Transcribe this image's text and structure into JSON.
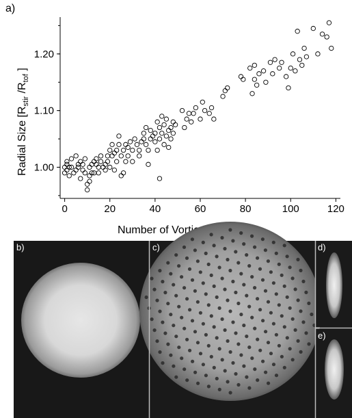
{
  "figure": {
    "panel_labels": {
      "a": "a)",
      "b": "b)",
      "c": "c)",
      "d": "d)",
      "e": "e)"
    },
    "images": {
      "b": "cloud-before-stirring",
      "c": "vortex-lattice",
      "d": "side-view-cloud-d",
      "e": "side-view-cloud-e"
    }
  },
  "chart_data": {
    "type": "scatter",
    "xlabel": "Number of Vortices",
    "ylabel": {
      "text_1": "Radial Size [R",
      "sub_1": "stir",
      "text_2": " /R",
      "sub_2": "tof",
      "text_3": " ]"
    },
    "xlim": [
      -2,
      122
    ],
    "ylim": [
      0.945,
      1.265
    ],
    "x_ticks": [
      0,
      20,
      40,
      60,
      80,
      100,
      120
    ],
    "x_tick_labels": [
      "0",
      "20",
      "40",
      "60",
      "80",
      "100",
      "120"
    ],
    "y_ticks": [
      1.0,
      1.1,
      1.2
    ],
    "y_tick_labels": [
      "1.00",
      "1.10",
      "1.20"
    ],
    "grid": false,
    "marker": "open-circle",
    "points": [
      [
        0,
        0.99
      ],
      [
        0,
        1.0
      ],
      [
        1,
        1.01
      ],
      [
        1,
        0.995
      ],
      [
        1,
        1.005
      ],
      [
        2,
        0.985
      ],
      [
        2,
        1.0
      ],
      [
        3,
        1.015
      ],
      [
        3,
        1.0
      ],
      [
        4,
        0.99
      ],
      [
        5,
        1.02
      ],
      [
        5,
        0.995
      ],
      [
        6,
        1.0
      ],
      [
        6,
        1.005
      ],
      [
        7,
        1.01
      ],
      [
        7,
        0.98
      ],
      [
        8,
        0.995
      ],
      [
        8,
        1.005
      ],
      [
        9,
        0.99
      ],
      [
        9,
        1.015
      ],
      [
        10,
        0.97
      ],
      [
        10,
        0.96
      ],
      [
        11,
        1.0
      ],
      [
        11,
        0.985
      ],
      [
        11,
        0.975
      ],
      [
        12,
        0.99
      ],
      [
        12,
        1.005
      ],
      [
        13,
        1.01
      ],
      [
        13,
        0.99
      ],
      [
        14,
        1.015
      ],
      [
        14,
        1.005
      ],
      [
        15,
        1.0
      ],
      [
        15,
        0.99
      ],
      [
        16,
        1.01
      ],
      [
        16,
        1.02
      ],
      [
        17,
        1.0
      ],
      [
        18,
        1.005
      ],
      [
        18,
        0.995
      ],
      [
        19,
        1.02
      ],
      [
        19,
        1.01
      ],
      [
        20,
        1.03
      ],
      [
        20,
        1.0
      ],
      [
        21,
        1.04
      ],
      [
        21,
        1.02
      ],
      [
        22,
        1.025
      ],
      [
        22,
        0.995
      ],
      [
        23,
        1.03
      ],
      [
        23,
        1.01
      ],
      [
        24,
        1.04
      ],
      [
        24,
        1.055
      ],
      [
        25,
        1.02
      ],
      [
        25,
        0.985
      ],
      [
        26,
        1.03
      ],
      [
        26,
        0.99
      ],
      [
        27,
        1.01
      ],
      [
        27,
        1.04
      ],
      [
        28,
        1.02
      ],
      [
        28,
        1.035
      ],
      [
        29,
        1.045
      ],
      [
        30,
        1.03
      ],
      [
        30,
        1.01
      ],
      [
        31,
        1.05
      ],
      [
        32,
        1.04
      ],
      [
        33,
        1.03
      ],
      [
        33,
        1.02
      ],
      [
        34,
        1.045
      ],
      [
        35,
        1.05
      ],
      [
        35,
        1.06
      ],
      [
        36,
        1.04
      ],
      [
        36,
        1.07
      ],
      [
        37,
        1.03
      ],
      [
        37,
        1.005
      ],
      [
        38,
        1.05
      ],
      [
        38,
        1.065
      ],
      [
        39,
        1.055
      ],
      [
        40,
        1.045
      ],
      [
        40,
        1.06
      ],
      [
        41,
        1.08
      ],
      [
        41,
        1.03
      ],
      [
        42,
        1.05
      ],
      [
        42,
        1.07
      ],
      [
        43,
        1.06
      ],
      [
        43,
        1.09
      ],
      [
        44,
        1.04
      ],
      [
        44,
        1.075
      ],
      [
        45,
        1.055
      ],
      [
        45,
        1.085
      ],
      [
        46,
        1.065
      ],
      [
        46,
        1.035
      ],
      [
        47,
        1.07
      ],
      [
        47,
        1.05
      ],
      [
        48,
        1.08
      ],
      [
        48,
        1.06
      ],
      [
        49,
        1.075
      ],
      [
        42,
        0.98
      ],
      [
        52,
        1.1
      ],
      [
        53,
        1.07
      ],
      [
        54,
        1.085
      ],
      [
        55,
        1.095
      ],
      [
        56,
        1.08
      ],
      [
        57,
        1.095
      ],
      [
        58,
        1.105
      ],
      [
        60,
        1.085
      ],
      [
        61,
        1.115
      ],
      [
        62,
        1.1
      ],
      [
        64,
        1.095
      ],
      [
        65,
        1.105
      ],
      [
        66,
        1.085
      ],
      [
        70,
        1.125
      ],
      [
        71,
        1.135
      ],
      [
        72,
        1.14
      ],
      [
        78,
        1.16
      ],
      [
        79,
        1.155
      ],
      [
        82,
        1.175
      ],
      [
        83,
        1.13
      ],
      [
        84,
        1.155
      ],
      [
        84,
        1.18
      ],
      [
        85,
        1.145
      ],
      [
        86,
        1.165
      ],
      [
        88,
        1.17
      ],
      [
        89,
        1.15
      ],
      [
        91,
        1.185
      ],
      [
        92,
        1.165
      ],
      [
        93,
        1.19
      ],
      [
        95,
        1.175
      ],
      [
        96,
        1.185
      ],
      [
        98,
        1.16
      ],
      [
        99,
        1.14
      ],
      [
        100,
        1.175
      ],
      [
        101,
        1.2
      ],
      [
        102,
        1.17
      ],
      [
        103,
        1.24
      ],
      [
        104,
        1.19
      ],
      [
        105,
        1.18
      ],
      [
        106,
        1.21
      ],
      [
        107,
        1.195
      ],
      [
        110,
        1.245
      ],
      [
        112,
        1.2
      ],
      [
        114,
        1.235
      ],
      [
        116,
        1.23
      ],
      [
        117,
        1.255
      ],
      [
        118,
        1.21
      ]
    ]
  }
}
